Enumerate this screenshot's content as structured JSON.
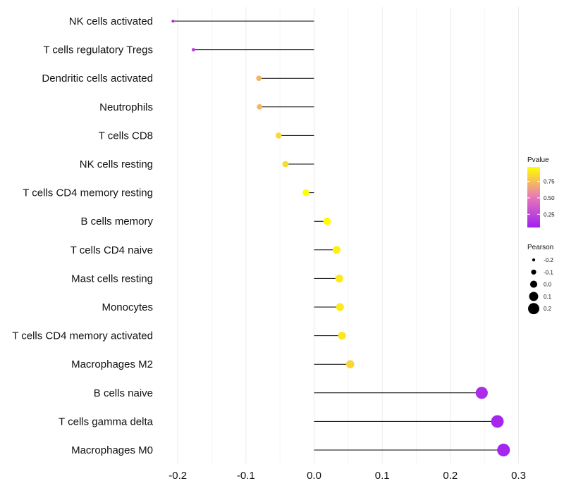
{
  "chart_data": {
    "type": "lollipop",
    "title": "",
    "xlabel": "",
    "ylabel": "",
    "xlim": [
      -0.225,
      0.315
    ],
    "x_ticks": [
      "-0.2",
      "-0.1",
      "0.0",
      "0.1",
      "0.2",
      "0.3"
    ],
    "x_tick_values": [
      -0.2,
      -0.1,
      0.0,
      0.1,
      0.2,
      0.3
    ],
    "categories": [
      "NK cells activated",
      "T cells regulatory  Tregs",
      "Dendritic cells activated",
      "Neutrophils",
      "T cells CD8",
      "NK cells resting",
      "T cells CD4 memory resting",
      "B cells memory",
      "T cells CD4 naive",
      "Mast cells resting",
      "Monocytes",
      "T cells CD4 memory activated",
      "Macrophages M2",
      "B cells naive",
      "T cells gamma delta",
      "Macrophages M0"
    ],
    "pearson": [
      -0.207,
      -0.177,
      -0.081,
      -0.08,
      -0.052,
      -0.042,
      -0.012,
      0.019,
      0.033,
      0.037,
      0.038,
      0.041,
      0.053,
      0.246,
      0.269,
      0.278
    ],
    "pvalue": [
      0.1,
      0.22,
      0.72,
      0.72,
      0.84,
      0.85,
      0.97,
      0.96,
      0.92,
      0.9,
      0.9,
      0.89,
      0.83,
      0.12,
      0.08,
      0.08
    ],
    "legend": {
      "color_title": "Pvalue",
      "color_ticks": [
        "0.75",
        "0.50",
        "0.25"
      ],
      "color_tick_values": [
        0.75,
        0.5,
        0.25
      ],
      "color_low": "#a020f0",
      "color_mid": "#e878b8",
      "color_high": "#ffff00",
      "size_title": "Pearson",
      "size_labels": [
        "-0.2",
        "-0.1",
        "0.0",
        "0.1",
        "0.2"
      ],
      "size_values": [
        -0.2,
        -0.1,
        0.0,
        0.1,
        0.2
      ]
    }
  }
}
